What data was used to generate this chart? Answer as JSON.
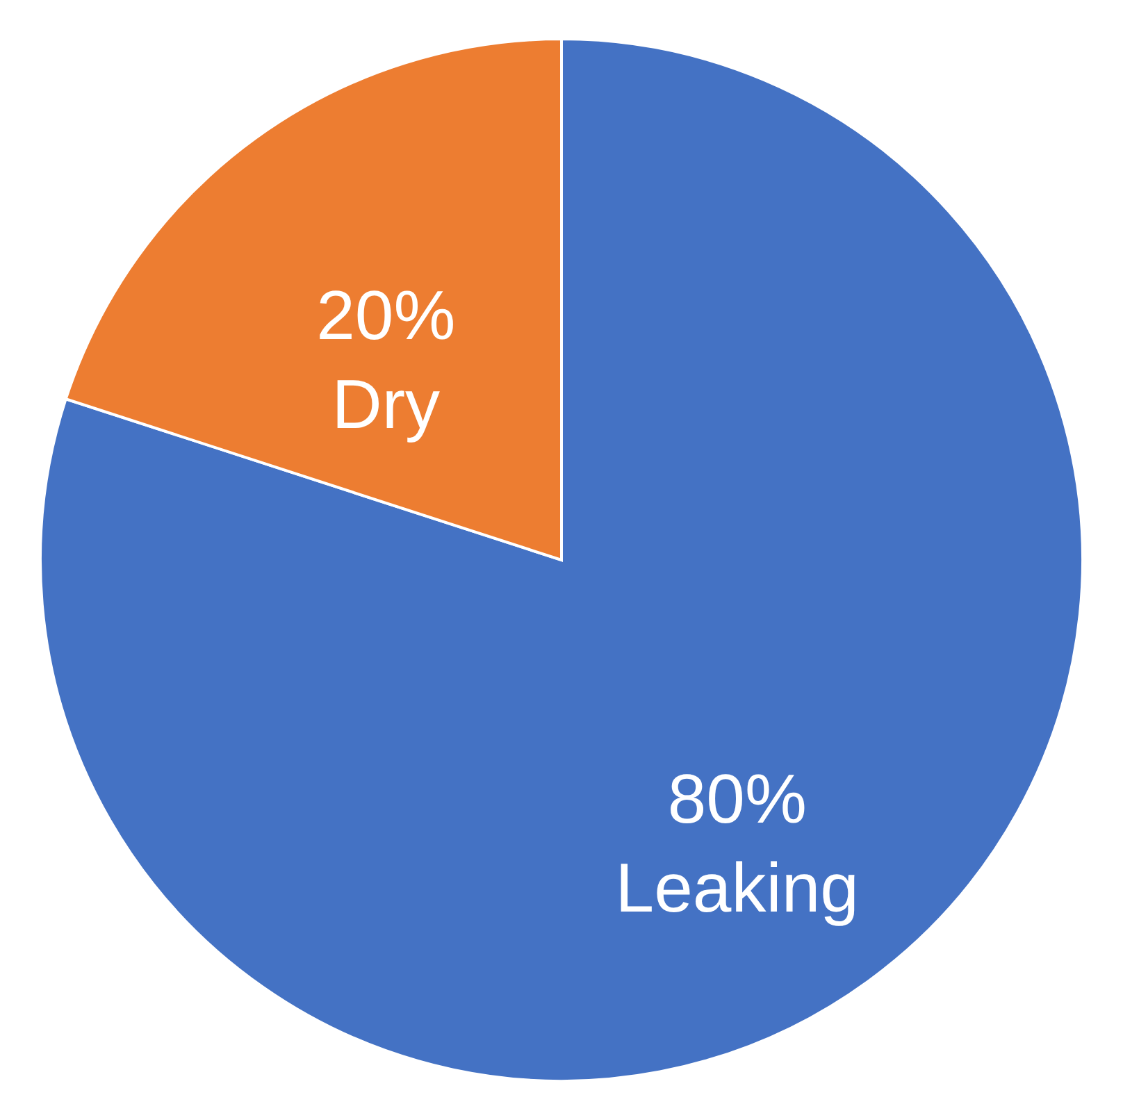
{
  "chart_data": {
    "type": "pie",
    "categories": [
      "Leaking",
      "Dry"
    ],
    "values": [
      80,
      20
    ],
    "colors": [
      "#4472c4",
      "#ed7d31"
    ],
    "value_labels": [
      "80%",
      "20%"
    ]
  }
}
